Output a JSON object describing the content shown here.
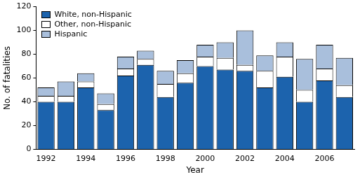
{
  "chart_data": {
    "type": "bar",
    "stacked": true,
    "legend": "upper left",
    "grid": false,
    "x_label": "Year",
    "y_label": "No. of fatalities",
    "categories": [
      "1992",
      null,
      "1994",
      null,
      "1996",
      null,
      "1998",
      null,
      "2000",
      null,
      "2002",
      null,
      "2004",
      null,
      "2006",
      null
    ],
    "series": [
      {
        "name": "White, non-Hispanic",
        "color": "#1c63ad",
        "values": [
          40,
          40,
          52,
          33,
          62,
          71,
          44,
          56,
          70,
          67,
          66,
          52,
          61,
          40,
          58,
          44
        ]
      },
      {
        "name": "Other, non-Hispanic",
        "color": "#ffffff",
        "values": [
          5,
          5,
          5,
          5,
          6,
          5,
          11,
          8,
          8,
          10,
          5,
          14,
          17,
          10,
          10,
          10
        ]
      },
      {
        "name": "Hispanic",
        "color": "#a9bfdc",
        "values": [
          7,
          12,
          7,
          9,
          10,
          7,
          11,
          11,
          10,
          13,
          29,
          13,
          12,
          26,
          20,
          23
        ]
      }
    ],
    "ylim": [
      0,
      120
    ],
    "yticks": [
      0,
      20,
      40,
      60,
      80,
      100,
      120
    ]
  }
}
